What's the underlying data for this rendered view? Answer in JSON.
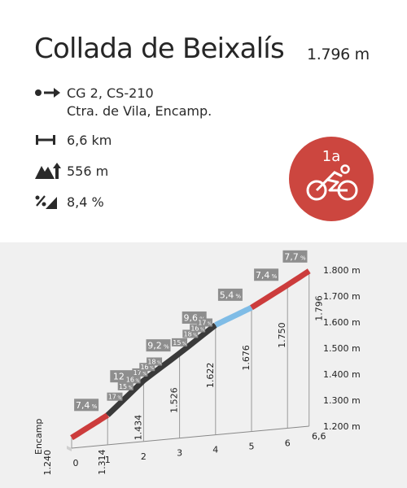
{
  "header": {
    "title": "Collada de Beixalís",
    "altitude": "1.796 m",
    "roads": "CG 2, CS-210",
    "start": "Ctra. de Vila, Encamp.",
    "distance": "6,6 km",
    "elevation_gain": "556 m",
    "avg_gradient": "8,4 %",
    "badge": "1a",
    "icons": {
      "start": "start-direction-icon",
      "distance": "distance-icon",
      "gain": "elevation-gain-icon",
      "gradient": "gradient-icon",
      "badge": "cyclist-icon"
    },
    "badge_color": "#cc463f"
  },
  "chart_data": {
    "type": "line",
    "title": "",
    "xlabel": "",
    "ylabel": "",
    "x_ticks": [
      "0",
      "1",
      "2",
      "3",
      "4",
      "5",
      "6",
      "6,6"
    ],
    "y_ticks": [
      "1.200 m",
      "1.300 m",
      "1.400 m",
      "1.500 m",
      "1.600 m",
      "1.700 m",
      "1.800 m"
    ],
    "ylim": [
      1200,
      1800
    ],
    "xlim": [
      0,
      6.6
    ],
    "start_label": "Encamp",
    "km_elevations": [
      {
        "km": 0,
        "label": "1.240"
      },
      {
        "km": 1,
        "label": "1.314"
      },
      {
        "km": 2,
        "label": "1.434"
      },
      {
        "km": 3,
        "label": "1.526"
      },
      {
        "km": 4,
        "label": "1.622"
      },
      {
        "km": 5,
        "label": "1.676"
      },
      {
        "km": 6,
        "label": "1.750"
      },
      {
        "km": 6.6,
        "label": "1.796"
      }
    ],
    "profile": [
      {
        "x": 0,
        "y": 1240
      },
      {
        "x": 1,
        "y": 1314
      },
      {
        "x": 2,
        "y": 1434
      },
      {
        "x": 3,
        "y": 1526
      },
      {
        "x": 4,
        "y": 1622
      },
      {
        "x": 5,
        "y": 1676
      },
      {
        "x": 6,
        "y": 1750
      },
      {
        "x": 6.6,
        "y": 1796
      }
    ],
    "segments": [
      {
        "from": 0,
        "to": 1,
        "color": "#cc3c3c"
      },
      {
        "from": 1,
        "to": 4,
        "color": "#3a3a3a"
      },
      {
        "from": 4,
        "to": 5,
        "color": "#7fbce6"
      },
      {
        "from": 5,
        "to": 6.6,
        "color": "#cc3c3c"
      }
    ],
    "km_gradients": [
      {
        "km": 0.5,
        "text": "7,4 %"
      },
      {
        "km": 1.5,
        "text": "12 %"
      },
      {
        "km": 2.5,
        "text": "9,2 %"
      },
      {
        "km": 3.5,
        "text": "9,6 %"
      },
      {
        "km": 4.5,
        "text": "5,4 %"
      },
      {
        "km": 5.5,
        "text": "7,4 %"
      },
      {
        "km": 6.3,
        "text": "7,7 %"
      }
    ],
    "small_gradients": [
      {
        "km": 1.3,
        "text": "17 %"
      },
      {
        "km": 1.6,
        "text": "15 %"
      },
      {
        "km": 1.8,
        "text": "16 %"
      },
      {
        "km": 2.0,
        "text": "17 %"
      },
      {
        "km": 2.2,
        "text": "16 %"
      },
      {
        "km": 2.4,
        "text": "18 %"
      },
      {
        "km": 3.1,
        "text": "15 %"
      },
      {
        "km": 3.4,
        "text": "18 %"
      },
      {
        "km": 3.6,
        "text": "16 %"
      },
      {
        "km": 3.8,
        "text": "17 %"
      }
    ],
    "grid": false
  }
}
